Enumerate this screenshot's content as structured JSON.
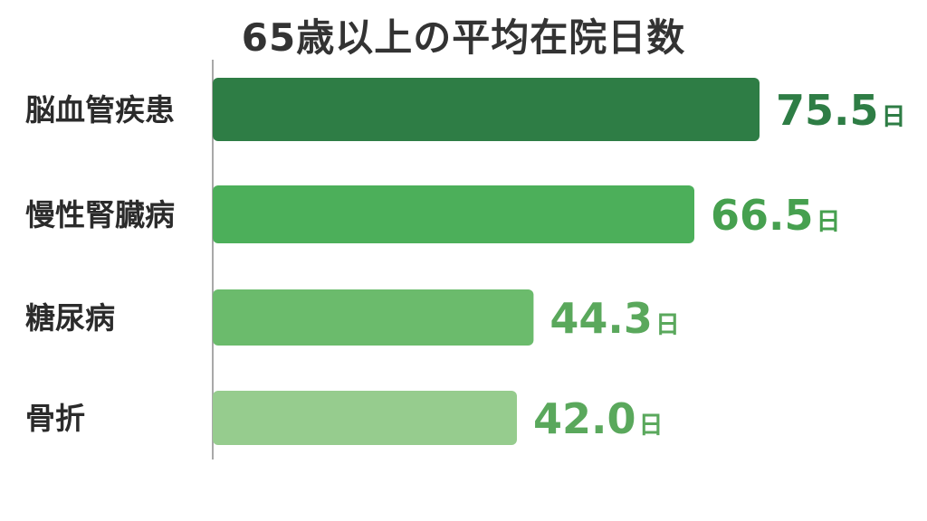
{
  "chart_data": {
    "type": "bar",
    "orientation": "horizontal",
    "title": "65歳以上の平均在院日数",
    "categories": [
      "脳血管疾患",
      "慢性腎臓病",
      "糖尿病",
      "骨折"
    ],
    "values": [
      75.5,
      66.5,
      44.3,
      42.0
    ],
    "value_labels": [
      "75.5",
      "66.5",
      "44.3",
      "42.0"
    ],
    "unit": "日",
    "xlim": [
      0,
      80
    ],
    "grid": false,
    "legend": "none",
    "colors": [
      "#2e7d45",
      "#4caf5a",
      "#6bbb6c",
      "#96cc8e"
    ],
    "label_colors": [
      "#2e7d45",
      "#46a04f",
      "#5aa85c",
      "#5aa85c"
    ]
  }
}
